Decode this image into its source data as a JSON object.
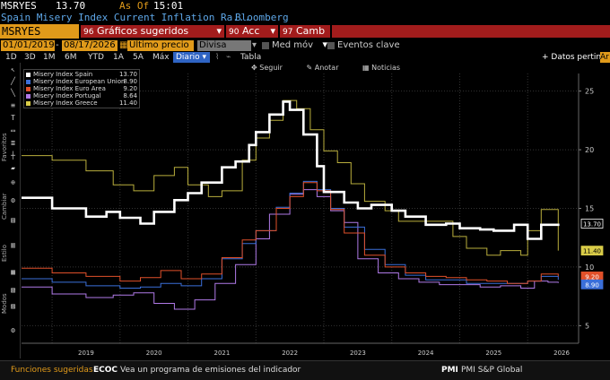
{
  "header": {
    "ticker_short": "MSRYES",
    "last_value": "13.70",
    "as_of_label": "As Of",
    "as_of_time": "15:01",
    "description": "Spain Misery Index Current Inflation Ra...",
    "source": "Bloomberg"
  },
  "toolbar": {
    "security": "MSRYES Index",
    "suggested_charts": "Gráficos sugeridos",
    "suggested_charts_num": "96",
    "actions": "Acc",
    "actions_num": "90",
    "change": "Camb",
    "change_num": "97"
  },
  "controls": {
    "start_date": "01/01/2019",
    "end_date": "08/17/2026",
    "last_price": "Último precio",
    "currency": "Divisa local",
    "moving_avg": "Med móv",
    "key_events": "Eventos clave"
  },
  "range_tabs": [
    "1D",
    "3D",
    "1M",
    "6M",
    "YTD",
    "1A",
    "5A",
    "Máx"
  ],
  "frequency": "Diario",
  "table_label": "Tabla",
  "more_data": "+ Datos pertin",
  "chart_tools": {
    "follow": "Seguir",
    "annotate": "Anotar",
    "news": "Noticias"
  },
  "left_toolbar": {
    "favorites": "Favoritos",
    "change": "Cambiar",
    "style": "Estilo",
    "modes": "Modos"
  },
  "chart_data": {
    "type": "line",
    "x_range": [
      "2018-07",
      "2026-09"
    ],
    "ylim": [
      3.5,
      26.5
    ],
    "y_ticks": [
      5,
      10,
      15,
      20,
      25
    ],
    "x_tick_labels": [
      "2019",
      "2020",
      "2021",
      "2022",
      "2023",
      "2024",
      "2025",
      "2026"
    ],
    "legend_position": "top-left",
    "series": [
      {
        "name": "Misery Index Spain",
        "color": "#ffffff",
        "last": "13.70",
        "x": [
          2018.55,
          2019.0,
          2019.5,
          2019.8,
          2020.0,
          2020.3,
          2020.5,
          2020.8,
          2021.0,
          2021.2,
          2021.5,
          2021.7,
          2021.9,
          2022.0,
          2022.2,
          2022.4,
          2022.5,
          2022.7,
          2022.9,
          2023.0,
          2023.3,
          2023.5,
          2023.7,
          2024.0,
          2024.2,
          2024.5,
          2024.8,
          2025.0,
          2025.3,
          2025.5,
          2025.8,
          2026.0,
          2026.2,
          2026.45
        ],
        "y": [
          15.9,
          15.0,
          14.3,
          14.7,
          14.2,
          13.7,
          14.7,
          15.7,
          16.3,
          17.2,
          18.5,
          19.0,
          20.4,
          21.5,
          23.0,
          24.1,
          23.4,
          21.3,
          18.6,
          16.4,
          15.5,
          15.0,
          15.3,
          14.8,
          14.3,
          13.6,
          13.7,
          13.3,
          13.2,
          13.1,
          13.6,
          12.4,
          13.6,
          13.7
        ]
      },
      {
        "name": "Misery Index European Union",
        "color": "#3b6fd9",
        "last": "8.90",
        "x": [
          2018.55,
          2019.0,
          2019.5,
          2020.0,
          2020.3,
          2020.6,
          2020.9,
          2021.2,
          2021.5,
          2021.8,
          2022.0,
          2022.3,
          2022.5,
          2022.7,
          2022.9,
          2023.1,
          2023.3,
          2023.6,
          2023.9,
          2024.2,
          2024.5,
          2024.8,
          2025.1,
          2025.4,
          2025.7,
          2026.0,
          2026.2,
          2026.45
        ],
        "y": [
          9.0,
          8.7,
          8.4,
          8.2,
          8.3,
          8.6,
          8.4,
          9.0,
          10.7,
          12.0,
          13.1,
          15.1,
          16.3,
          17.3,
          16.6,
          15.0,
          13.4,
          11.5,
          10.2,
          9.3,
          8.9,
          8.9,
          8.6,
          8.6,
          8.6,
          8.8,
          9.2,
          8.9
        ]
      },
      {
        "name": "Misery Index Euro Area",
        "color": "#e0502a",
        "last": "9.20",
        "x": [
          2018.55,
          2019.0,
          2019.5,
          2020.0,
          2020.3,
          2020.6,
          2020.9,
          2021.2,
          2021.5,
          2021.8,
          2022.0,
          2022.3,
          2022.5,
          2022.7,
          2022.9,
          2023.1,
          2023.3,
          2023.6,
          2023.9,
          2024.2,
          2024.5,
          2024.8,
          2025.1,
          2025.4,
          2025.7,
          2026.0,
          2026.2,
          2026.45
        ],
        "y": [
          9.9,
          9.5,
          9.2,
          8.8,
          9.1,
          9.7,
          9.0,
          9.4,
          10.8,
          12.3,
          13.1,
          15.0,
          16.0,
          17.2,
          16.5,
          14.9,
          12.9,
          11.0,
          10.0,
          9.5,
          9.2,
          9.1,
          8.9,
          8.8,
          8.6,
          8.8,
          9.4,
          9.2
        ]
      },
      {
        "name": "Misery Index Portugal",
        "color": "#b07ae8",
        "last": "8.64",
        "x": [
          2018.55,
          2019.0,
          2019.5,
          2019.9,
          2020.2,
          2020.5,
          2020.8,
          2021.1,
          2021.4,
          2021.7,
          2022.0,
          2022.2,
          2022.5,
          2022.7,
          2022.9,
          2023.1,
          2023.3,
          2023.5,
          2023.8,
          2024.1,
          2024.4,
          2024.7,
          2025.0,
          2025.3,
          2025.6,
          2025.9,
          2026.1,
          2026.3,
          2026.45
        ],
        "y": [
          8.3,
          7.7,
          7.4,
          7.6,
          7.8,
          6.9,
          6.4,
          7.2,
          8.6,
          10.2,
          12.4,
          14.5,
          16.2,
          16.6,
          16.0,
          14.8,
          13.8,
          10.7,
          9.5,
          9.0,
          8.7,
          8.5,
          8.5,
          8.3,
          8.4,
          8.2,
          8.8,
          8.7,
          8.64
        ]
      },
      {
        "name": "Misery Index Greece",
        "color": "#d9cc48",
        "last": "11.40",
        "x": [
          2018.55,
          2019.0,
          2019.5,
          2019.9,
          2020.2,
          2020.5,
          2020.8,
          2021.0,
          2021.3,
          2021.5,
          2021.8,
          2022.0,
          2022.2,
          2022.4,
          2022.6,
          2022.8,
          2023.0,
          2023.2,
          2023.4,
          2023.6,
          2023.9,
          2024.1,
          2024.4,
          2024.6,
          2024.9,
          2025.1,
          2025.4,
          2025.6,
          2025.9,
          2026.0,
          2026.2,
          2026.45
        ],
        "y": [
          19.5,
          19.1,
          18.2,
          17.0,
          16.5,
          17.8,
          18.5,
          17.0,
          16.0,
          16.5,
          19.1,
          21.0,
          22.5,
          24.2,
          23.5,
          21.7,
          19.9,
          18.9,
          17.1,
          15.6,
          14.8,
          13.9,
          13.9,
          13.9,
          12.6,
          11.6,
          11.0,
          11.4,
          11.0,
          13.1,
          14.9,
          11.4
        ]
      }
    ]
  },
  "legend": [
    {
      "name": "Misery Index Spain",
      "value": "13.70",
      "color": "#ffffff"
    },
    {
      "name": "Misery Index European Union",
      "value": "8.90",
      "color": "#3b6fd9"
    },
    {
      "name": "Misery Index Euro Area",
      "value": "9.20",
      "color": "#e0502a"
    },
    {
      "name": "Misery Index Portugal",
      "value": "8.64",
      "color": "#b07ae8"
    },
    {
      "name": "Misery Index Greece",
      "value": "11.40",
      "color": "#d9cc48"
    }
  ],
  "footer": {
    "suggested_functions": "Funciones sugeridas",
    "ecoc_code": "ECOC",
    "ecoc_text": "Vea un programa de emisiones del indicador",
    "pmi_code": "PMI",
    "pmi_text": "PMI S&P Global"
  }
}
